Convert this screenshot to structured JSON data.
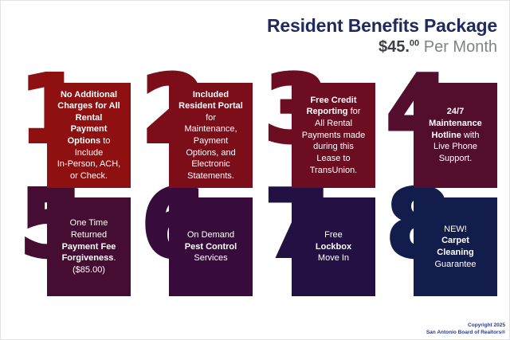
{
  "header": {
    "title": "Resident Benefits Package",
    "price_amount": "$45.",
    "price_cents": "00",
    "price_suffix": " Per Month"
  },
  "tiles": [
    {
      "number": "1",
      "color": "#8e1010",
      "segments": [
        {
          "bold": true,
          "text": "No Additional\nCharges for All\nRental\nPayment\nOptions"
        },
        {
          "bold": false,
          "text": " to\nInclude\nIn-Person, ACH,\nor Check."
        }
      ]
    },
    {
      "number": "2",
      "color": "#7c0e19",
      "segments": [
        {
          "bold": true,
          "text": "Included\nResident Portal"
        },
        {
          "bold": false,
          "text": "\nfor\nMaintenance,\nPayment\nOptions, and\nElectronic\nStatements."
        }
      ]
    },
    {
      "number": "3",
      "color": "#6d0d22",
      "segments": [
        {
          "bold": true,
          "text": "Free Credit\nReporting"
        },
        {
          "bold": false,
          "text": " for\nAll Rental\nPayments made\nduring this\nLease to\nTransUnion."
        }
      ]
    },
    {
      "number": "4",
      "color": "#530e2d",
      "segments": [
        {
          "bold": true,
          "text": "24/7\nMaintenance\nHotline"
        },
        {
          "bold": false,
          "text": " with\nLive Phone\nSupport."
        }
      ]
    },
    {
      "number": "5",
      "color": "#440d31",
      "segments": [
        {
          "bold": false,
          "text": "One Time\nReturned\n"
        },
        {
          "bold": true,
          "text": "Payment Fee\nForgiveness"
        },
        {
          "bold": false,
          "text": ".\n($85.00)"
        }
      ]
    },
    {
      "number": "6",
      "color": "#370c3a",
      "segments": [
        {
          "bold": false,
          "text": "On Demand\n"
        },
        {
          "bold": true,
          "text": "Pest Control"
        },
        {
          "bold": false,
          "text": "\nServices"
        }
      ]
    },
    {
      "number": "7",
      "color": "#231143",
      "segments": [
        {
          "bold": false,
          "text": "Free\n"
        },
        {
          "bold": true,
          "text": "Lockbox"
        },
        {
          "bold": false,
          "text": "\nMove In"
        }
      ]
    },
    {
      "number": "8",
      "color": "#131d4c",
      "segments": [
        {
          "bold": false,
          "text": "NEW!\n"
        },
        {
          "bold": true,
          "text": "Carpet\nCleaning"
        },
        {
          "bold": false,
          "text": "\nGuarantee"
        }
      ]
    }
  ],
  "footer": {
    "line1": "Copyright 2025",
    "line2": "San Antonio Board of Realtors®"
  },
  "colors": {
    "title_navy": "#1f2a5e",
    "price_dark": "#3e4049",
    "price_gray": "#7f8289",
    "footer_blue": "#2c3a86",
    "tile_text": "#ffffff",
    "background": "#ffffff"
  },
  "layout_values": {
    "grid_column_lefts": [
      25,
      178,
      332,
      485
    ],
    "grid_row_tops": [
      103,
      247
    ],
    "grid_row_heights": [
      132,
      124
    ]
  }
}
